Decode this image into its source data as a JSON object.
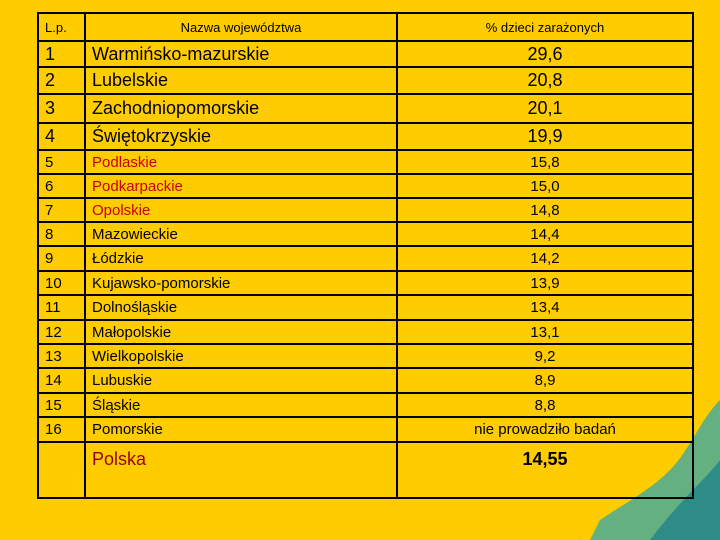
{
  "table": {
    "header": [
      "L.p.",
      "Nazwa województwa",
      "% dzieci zarażonych"
    ],
    "rows": [
      [
        "1",
        "Warmińsko-mazurskie",
        "29,6"
      ],
      [
        "2",
        "Lubelskie",
        "20,8"
      ],
      [
        "3",
        "Zachodniopomorskie",
        "20,1"
      ],
      [
        "4",
        "Świętokrzyskie",
        "19,9"
      ],
      [
        "5",
        "Podlaskie",
        "15,8"
      ],
      [
        "6",
        "Podkarpackie",
        "15,0"
      ],
      [
        "7",
        "Opolskie",
        "14,8"
      ],
      [
        "8",
        "Mazowieckie",
        "14,4"
      ],
      [
        "9",
        "Łódzkie",
        "14,2"
      ],
      [
        "10",
        "Kujawsko-pomorskie",
        "13,9"
      ],
      [
        "11",
        "Dolnośląskie",
        "13,4"
      ],
      [
        "12",
        "Małopolskie",
        "13,1"
      ],
      [
        "13",
        "Wielkopolskie",
        "9,2"
      ],
      [
        "14",
        "Lubuskie",
        "8,9"
      ],
      [
        "15",
        "Śląskie",
        "8,8"
      ],
      [
        "16",
        "Pomorskie",
        "nie prowadziło badań"
      ]
    ],
    "footer": [
      "Polska",
      "14,55"
    ]
  }
}
